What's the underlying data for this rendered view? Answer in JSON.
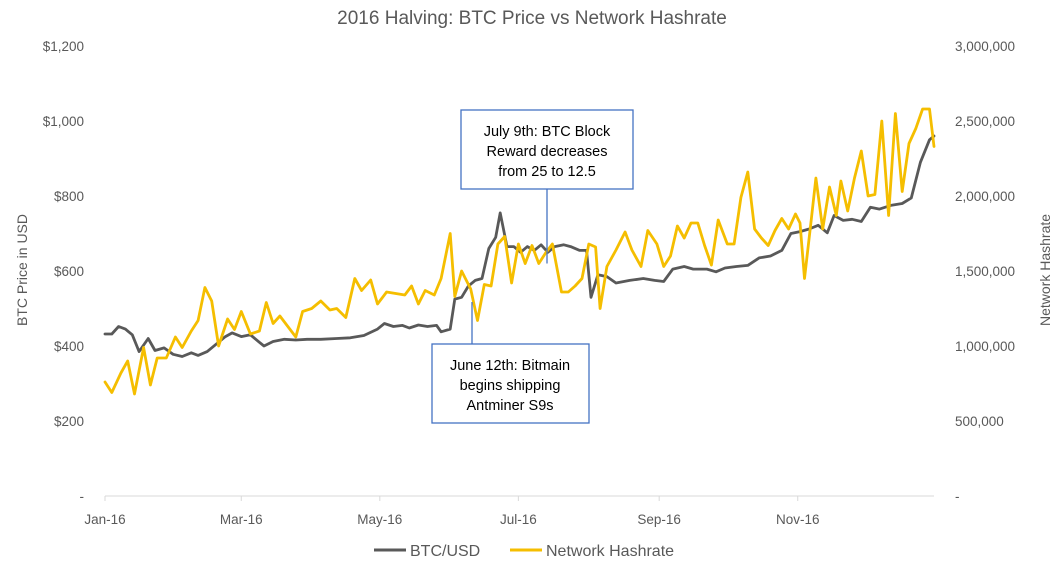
{
  "chart_data": {
    "type": "line",
    "title": "2016 Halving: BTC Price vs Network Hashrate",
    "ylabel_left": "BTC Price in USD",
    "ylabel_right": "Network Hashrate",
    "x_range": [
      "2016-01-01",
      "2016-12-31"
    ],
    "x_ticks": [
      {
        "date": "2016-01-01",
        "label": "Jan-16"
      },
      {
        "date": "2016-03-01",
        "label": "Mar-16"
      },
      {
        "date": "2016-05-01",
        "label": "May-16"
      },
      {
        "date": "2016-07-01",
        "label": "Jul-16"
      },
      {
        "date": "2016-09-01",
        "label": "Sep-16"
      },
      {
        "date": "2016-11-01",
        "label": "Nov-16"
      }
    ],
    "y_left": {
      "range": [
        0,
        1200
      ],
      "ticks": [
        {
          "value": 0,
          "label": "-"
        },
        {
          "value": 200,
          "label": "$200"
        },
        {
          "value": 400,
          "label": "$400"
        },
        {
          "value": 600,
          "label": "$600"
        },
        {
          "value": 800,
          "label": "$800"
        },
        {
          "value": 1000,
          "label": "$1,000"
        },
        {
          "value": 1200,
          "label": "$1,200"
        }
      ]
    },
    "y_right": {
      "range": [
        0,
        3000000
      ],
      "ticks": [
        {
          "value": 0,
          "label": "-"
        },
        {
          "value": 500000,
          "label": "500,000"
        },
        {
          "value": 1000000,
          "label": "1,000,000"
        },
        {
          "value": 1500000,
          "label": "1,500,000"
        },
        {
          "value": 2000000,
          "label": "2,000,000"
        },
        {
          "value": 2500000,
          "label": "2,500,000"
        },
        {
          "value": 3000000,
          "label": "3,000,000"
        }
      ]
    },
    "grid": false,
    "legend_position": "bottom",
    "series": [
      {
        "name": "BTC/USD",
        "axis": "left",
        "color": "#595959",
        "points": [
          [
            "2016-01-01",
            432
          ],
          [
            "2016-01-04",
            432
          ],
          [
            "2016-01-07",
            452
          ],
          [
            "2016-01-10",
            445
          ],
          [
            "2016-01-13",
            430
          ],
          [
            "2016-01-16",
            385
          ],
          [
            "2016-01-20",
            420
          ],
          [
            "2016-01-23",
            388
          ],
          [
            "2016-01-27",
            395
          ],
          [
            "2016-01-31",
            378
          ],
          [
            "2016-02-04",
            372
          ],
          [
            "2016-02-08",
            382
          ],
          [
            "2016-02-11",
            375
          ],
          [
            "2016-02-15",
            385
          ],
          [
            "2016-02-19",
            405
          ],
          [
            "2016-02-23",
            425
          ],
          [
            "2016-02-26",
            435
          ],
          [
            "2016-03-01",
            425
          ],
          [
            "2016-03-05",
            430
          ],
          [
            "2016-03-09",
            410
          ],
          [
            "2016-03-11",
            400
          ],
          [
            "2016-03-15",
            412
          ],
          [
            "2016-03-20",
            418
          ],
          [
            "2016-03-25",
            416
          ],
          [
            "2016-03-30",
            418
          ],
          [
            "2016-04-05",
            418
          ],
          [
            "2016-04-12",
            420
          ],
          [
            "2016-04-18",
            422
          ],
          [
            "2016-04-24",
            428
          ],
          [
            "2016-04-30",
            445
          ],
          [
            "2016-05-03",
            460
          ],
          [
            "2016-05-07",
            452
          ],
          [
            "2016-05-11",
            455
          ],
          [
            "2016-05-14",
            448
          ],
          [
            "2016-05-18",
            456
          ],
          [
            "2016-05-22",
            452
          ],
          [
            "2016-05-26",
            455
          ],
          [
            "2016-05-28",
            438
          ],
          [
            "2016-06-01",
            445
          ],
          [
            "2016-06-03",
            525
          ],
          [
            "2016-06-06",
            530
          ],
          [
            "2016-06-09",
            560
          ],
          [
            "2016-06-12",
            575
          ],
          [
            "2016-06-15",
            580
          ],
          [
            "2016-06-18",
            660
          ],
          [
            "2016-06-21",
            690
          ],
          [
            "2016-06-23",
            755
          ],
          [
            "2016-06-26",
            665
          ],
          [
            "2016-06-29",
            665
          ],
          [
            "2016-07-02",
            650
          ],
          [
            "2016-07-05",
            665
          ],
          [
            "2016-07-08",
            655
          ],
          [
            "2016-07-11",
            670
          ],
          [
            "2016-07-14",
            650
          ],
          [
            "2016-07-17",
            665
          ],
          [
            "2016-07-21",
            670
          ],
          [
            "2016-07-24",
            665
          ],
          [
            "2016-07-28",
            655
          ],
          [
            "2016-07-31",
            655
          ],
          [
            "2016-08-02",
            530
          ],
          [
            "2016-08-05",
            590
          ],
          [
            "2016-08-09",
            585
          ],
          [
            "2016-08-13",
            568
          ],
          [
            "2016-08-19",
            575
          ],
          [
            "2016-08-25",
            580
          ],
          [
            "2016-08-30",
            575
          ],
          [
            "2016-09-03",
            572
          ],
          [
            "2016-09-07",
            605
          ],
          [
            "2016-09-12",
            612
          ],
          [
            "2016-09-16",
            605
          ],
          [
            "2016-09-22",
            605
          ],
          [
            "2016-09-26",
            598
          ],
          [
            "2016-09-30",
            608
          ],
          [
            "2016-10-05",
            612
          ],
          [
            "2016-10-10",
            615
          ],
          [
            "2016-10-15",
            635
          ],
          [
            "2016-10-20",
            640
          ],
          [
            "2016-10-25",
            655
          ],
          [
            "2016-10-29",
            700
          ],
          [
            "2016-11-02",
            705
          ],
          [
            "2016-11-06",
            712
          ],
          [
            "2016-11-10",
            722
          ],
          [
            "2016-11-14",
            702
          ],
          [
            "2016-11-17",
            748
          ],
          [
            "2016-11-21",
            735
          ],
          [
            "2016-11-25",
            738
          ],
          [
            "2016-11-29",
            732
          ],
          [
            "2016-12-03",
            770
          ],
          [
            "2016-12-07",
            765
          ],
          [
            "2016-12-12",
            775
          ],
          [
            "2016-12-17",
            780
          ],
          [
            "2016-12-21",
            795
          ],
          [
            "2016-12-25",
            890
          ],
          [
            "2016-12-29",
            950
          ],
          [
            "2016-12-31",
            960
          ]
        ]
      },
      {
        "name": "Network Hashrate",
        "axis": "right",
        "color": "#f5be00",
        "points": [
          [
            "2016-01-01",
            760000
          ],
          [
            "2016-01-04",
            690000
          ],
          [
            "2016-01-08",
            820000
          ],
          [
            "2016-01-11",
            900000
          ],
          [
            "2016-01-14",
            680000
          ],
          [
            "2016-01-18",
            990000
          ],
          [
            "2016-01-21",
            740000
          ],
          [
            "2016-01-24",
            920000
          ],
          [
            "2016-01-28",
            920000
          ],
          [
            "2016-02-01",
            1060000
          ],
          [
            "2016-02-04",
            990000
          ],
          [
            "2016-02-08",
            1100000
          ],
          [
            "2016-02-11",
            1170000
          ],
          [
            "2016-02-14",
            1390000
          ],
          [
            "2016-02-17",
            1300000
          ],
          [
            "2016-02-20",
            1000000
          ],
          [
            "2016-02-24",
            1180000
          ],
          [
            "2016-02-27",
            1110000
          ],
          [
            "2016-03-01",
            1230000
          ],
          [
            "2016-03-05",
            1080000
          ],
          [
            "2016-03-09",
            1100000
          ],
          [
            "2016-03-12",
            1290000
          ],
          [
            "2016-03-15",
            1150000
          ],
          [
            "2016-03-18",
            1200000
          ],
          [
            "2016-03-21",
            1140000
          ],
          [
            "2016-03-25",
            1060000
          ],
          [
            "2016-03-28",
            1230000
          ],
          [
            "2016-04-01",
            1250000
          ],
          [
            "2016-04-05",
            1300000
          ],
          [
            "2016-04-09",
            1240000
          ],
          [
            "2016-04-12",
            1250000
          ],
          [
            "2016-04-16",
            1190000
          ],
          [
            "2016-04-20",
            1450000
          ],
          [
            "2016-04-23",
            1370000
          ],
          [
            "2016-04-27",
            1440000
          ],
          [
            "2016-04-30",
            1280000
          ],
          [
            "2016-05-04",
            1360000
          ],
          [
            "2016-05-08",
            1350000
          ],
          [
            "2016-05-12",
            1340000
          ],
          [
            "2016-05-15",
            1400000
          ],
          [
            "2016-05-18",
            1280000
          ],
          [
            "2016-05-21",
            1370000
          ],
          [
            "2016-05-25",
            1340000
          ],
          [
            "2016-05-28",
            1450000
          ],
          [
            "2016-06-01",
            1750000
          ],
          [
            "2016-06-03",
            1330000
          ],
          [
            "2016-06-06",
            1500000
          ],
          [
            "2016-06-10",
            1380000
          ],
          [
            "2016-06-13",
            1170000
          ],
          [
            "2016-06-16",
            1410000
          ],
          [
            "2016-06-19",
            1400000
          ],
          [
            "2016-06-22",
            1680000
          ],
          [
            "2016-06-25",
            1730000
          ],
          [
            "2016-06-28",
            1420000
          ],
          [
            "2016-07-01",
            1680000
          ],
          [
            "2016-07-04",
            1550000
          ],
          [
            "2016-07-07",
            1670000
          ],
          [
            "2016-07-10",
            1550000
          ],
          [
            "2016-07-13",
            1620000
          ],
          [
            "2016-07-16",
            1680000
          ],
          [
            "2016-07-20",
            1360000
          ],
          [
            "2016-07-23",
            1360000
          ],
          [
            "2016-07-26",
            1400000
          ],
          [
            "2016-07-29",
            1450000
          ],
          [
            "2016-08-01",
            1680000
          ],
          [
            "2016-08-04",
            1660000
          ],
          [
            "2016-08-06",
            1250000
          ],
          [
            "2016-08-09",
            1530000
          ],
          [
            "2016-08-13",
            1640000
          ],
          [
            "2016-08-17",
            1760000
          ],
          [
            "2016-08-20",
            1640000
          ],
          [
            "2016-08-24",
            1530000
          ],
          [
            "2016-08-27",
            1770000
          ],
          [
            "2016-08-31",
            1680000
          ],
          [
            "2016-09-03",
            1530000
          ],
          [
            "2016-09-06",
            1600000
          ],
          [
            "2016-09-09",
            1800000
          ],
          [
            "2016-09-12",
            1720000
          ],
          [
            "2016-09-15",
            1820000
          ],
          [
            "2016-09-18",
            1820000
          ],
          [
            "2016-09-21",
            1670000
          ],
          [
            "2016-09-24",
            1540000
          ],
          [
            "2016-09-27",
            1840000
          ],
          [
            "2016-10-01",
            1680000
          ],
          [
            "2016-10-04",
            1680000
          ],
          [
            "2016-10-07",
            1990000
          ],
          [
            "2016-10-10",
            2160000
          ],
          [
            "2016-10-13",
            1780000
          ],
          [
            "2016-10-16",
            1720000
          ],
          [
            "2016-10-19",
            1670000
          ],
          [
            "2016-10-22",
            1770000
          ],
          [
            "2016-10-25",
            1850000
          ],
          [
            "2016-10-28",
            1780000
          ],
          [
            "2016-10-31",
            1880000
          ],
          [
            "2016-11-02",
            1820000
          ],
          [
            "2016-11-04",
            1450000
          ],
          [
            "2016-11-07",
            1850000
          ],
          [
            "2016-11-09",
            2120000
          ],
          [
            "2016-11-12",
            1780000
          ],
          [
            "2016-11-15",
            2060000
          ],
          [
            "2016-11-18",
            1870000
          ],
          [
            "2016-11-20",
            2100000
          ],
          [
            "2016-11-23",
            1900000
          ],
          [
            "2016-11-26",
            2120000
          ],
          [
            "2016-11-29",
            2300000
          ],
          [
            "2016-12-02",
            2000000
          ],
          [
            "2016-12-05",
            2010000
          ],
          [
            "2016-12-08",
            2500000
          ],
          [
            "2016-12-11",
            1870000
          ],
          [
            "2016-12-14",
            2550000
          ],
          [
            "2016-12-17",
            2030000
          ],
          [
            "2016-12-20",
            2350000
          ],
          [
            "2016-12-23",
            2450000
          ],
          [
            "2016-12-26",
            2580000
          ],
          [
            "2016-12-29",
            2580000
          ],
          [
            "2016-12-31",
            2330000
          ]
        ]
      }
    ],
    "annotations": [
      {
        "text_lines": [
          "July 9th: BTC Block",
          "Reward decreases",
          "from 25 to 12.5"
        ],
        "date": "2016-07-09",
        "position": "above"
      },
      {
        "text_lines": [
          "June 12th: Bitmain",
          "begins shipping",
          "Antminer S9s"
        ],
        "date": "2016-06-12",
        "position": "below"
      }
    ]
  }
}
